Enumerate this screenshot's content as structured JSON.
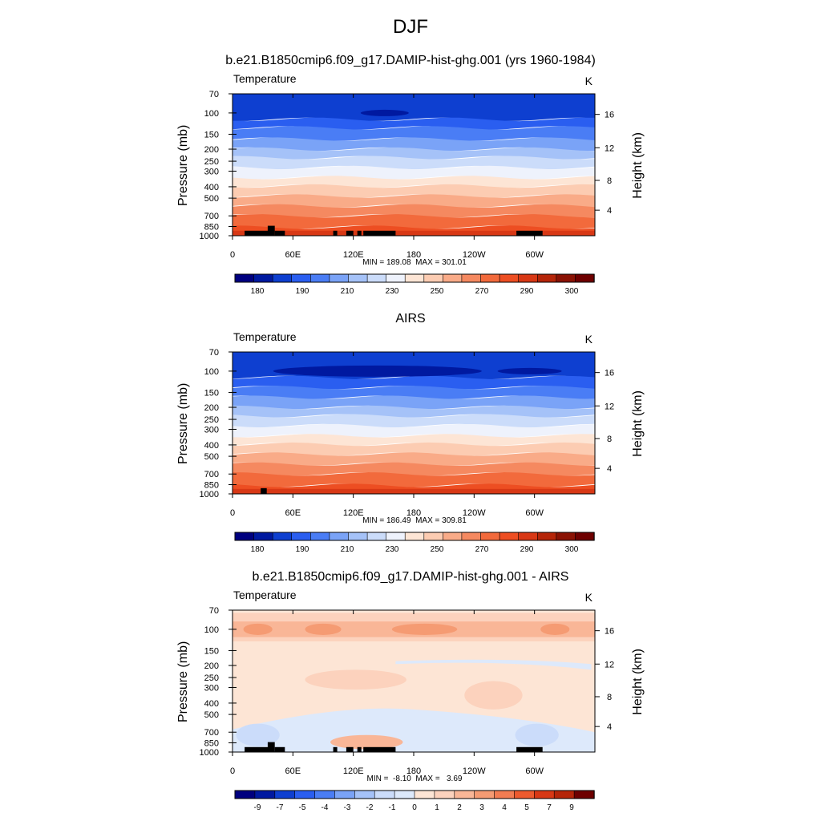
{
  "figure": {
    "title": "DJF"
  },
  "colors": {
    "temperature_levels": [
      "#00007f",
      "#0019a0",
      "#0e3fd0",
      "#2a5ef0",
      "#4a7df5",
      "#7aa3f7",
      "#a5c2f8",
      "#cbdcfa",
      "#eef2fc",
      "#fde5d5",
      "#fcccb2",
      "#f9ab88",
      "#f58960",
      "#f26a3c",
      "#ed4e22",
      "#d83815",
      "#b52509",
      "#8a1204",
      "#6e0000"
    ],
    "difference_levels": [
      "#00007f",
      "#0019a0",
      "#0e3fd0",
      "#2a5ef0",
      "#4a7df5",
      "#7aa3f7",
      "#a5c2f8",
      "#cbdcfa",
      "#dde9fb",
      "#fde5d5",
      "#fcd2bd",
      "#f9b697",
      "#f59b73",
      "#f27c52",
      "#ed5a2e",
      "#d83815",
      "#b52509",
      "#6e0000"
    ],
    "land_mask": "#000000"
  },
  "chart_data": [
    {
      "type": "heatmap",
      "title": "b.e21.B1850cmip6.f09_g17.DAMIP-hist-ghg.001 (yrs 1960-1984)",
      "left_label": "Temperature",
      "right_label": "K",
      "ylabel": "Pressure (mb)",
      "ylabel_right": "Height (km)",
      "x_ticks": [
        "0",
        "60E",
        "120E",
        "180",
        "120W",
        "60W"
      ],
      "y_ticks": [
        "70",
        "100",
        "150",
        "200",
        "250",
        "300",
        "400",
        "500",
        "700",
        "850",
        "1000"
      ],
      "y_ticks_right": [
        "16",
        "12",
        "8",
        "4"
      ],
      "stats": "MIN = 189.08  MAX = 301.01",
      "colorbar_labels": [
        "180",
        "190",
        "210",
        "230",
        "250",
        "270",
        "290",
        "300"
      ],
      "value_range": [
        189.08,
        301.01
      ],
      "ylim": [
        1000,
        70
      ]
    },
    {
      "type": "heatmap",
      "title": "AIRS",
      "left_label": "Temperature",
      "right_label": "K",
      "ylabel": "Pressure (mb)",
      "ylabel_right": "Height (km)",
      "x_ticks": [
        "0",
        "60E",
        "120E",
        "180",
        "120W",
        "60W"
      ],
      "y_ticks": [
        "70",
        "100",
        "150",
        "200",
        "250",
        "300",
        "400",
        "500",
        "700",
        "850",
        "1000"
      ],
      "y_ticks_right": [
        "16",
        "12",
        "8",
        "4"
      ],
      "stats": "MIN = 186.49  MAX = 309.81",
      "colorbar_labels": [
        "180",
        "190",
        "210",
        "230",
        "250",
        "270",
        "290",
        "300"
      ],
      "value_range": [
        186.49,
        309.81
      ],
      "ylim": [
        1000,
        70
      ]
    },
    {
      "type": "heatmap",
      "title": "b.e21.B1850cmip6.f09_g17.DAMIP-hist-ghg.001 - AIRS",
      "left_label": "Temperature",
      "right_label": "K",
      "ylabel": "Pressure (mb)",
      "ylabel_right": "Height (km)",
      "x_ticks": [
        "0",
        "60E",
        "120E",
        "180",
        "120W",
        "60W"
      ],
      "y_ticks": [
        "70",
        "100",
        "150",
        "200",
        "250",
        "300",
        "400",
        "500",
        "700",
        "850",
        "1000"
      ],
      "y_ticks_right": [
        "16",
        "12",
        "8",
        "4"
      ],
      "stats": "MIN =  -8.10  MAX =   3.69",
      "colorbar_labels": [
        "-9",
        "-7",
        "-5",
        "-4",
        "-3",
        "-2",
        "-1",
        "0",
        "1",
        "2",
        "3",
        "4",
        "5",
        "7",
        "9"
      ],
      "value_range": [
        -8.1,
        3.69
      ],
      "ylim": [
        1000,
        70
      ]
    }
  ]
}
